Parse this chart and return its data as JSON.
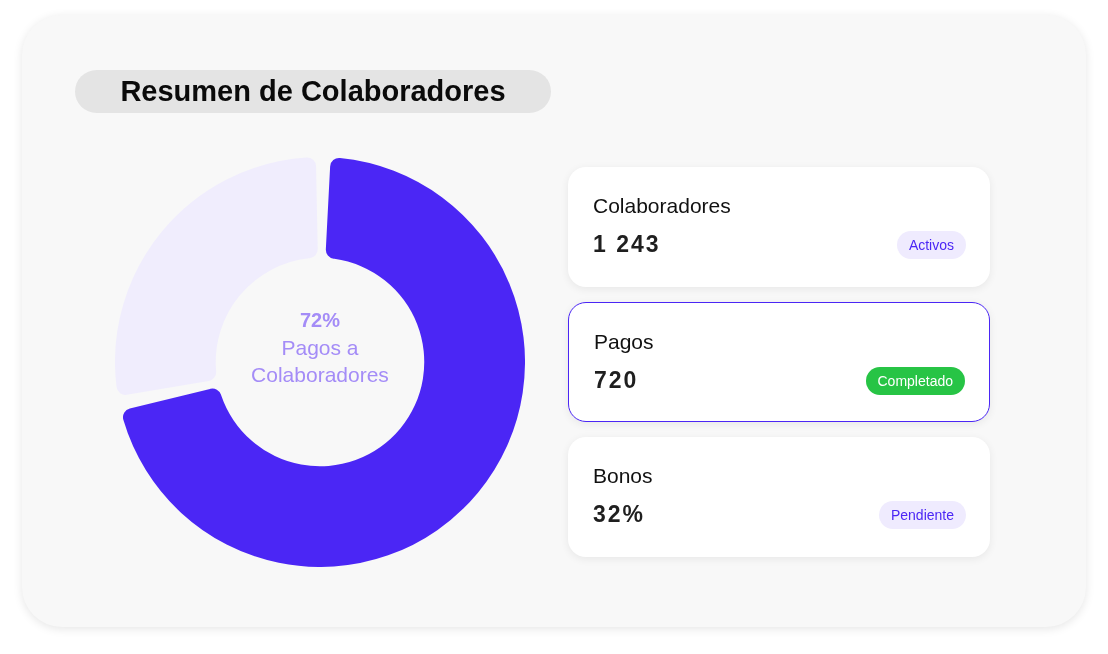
{
  "chart_data": [
    {
      "type": "donut",
      "title": "Resumen de Colaboradores",
      "categories": [
        "Pagos a Colaboradores",
        null
      ],
      "values": [
        72,
        28
      ],
      "colors": [
        "#4b26f5",
        "#f0edfd"
      ],
      "value_labels": [
        "72%",
        null
      ]
    },
    {
      "type": "other",
      "annotations": [
        "Colaboradores",
        "1 243",
        "Activos",
        "Pagos",
        "720",
        "Completado",
        "Bonos",
        "32%",
        "Pendiente"
      ]
    }
  ]
}
